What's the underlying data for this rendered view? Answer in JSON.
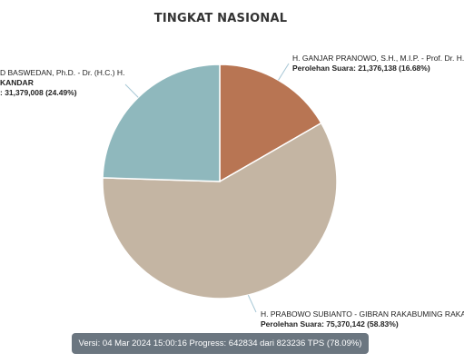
{
  "title": "TINGKAT NASIONAL",
  "colors": {
    "anies": "#8fb8bd",
    "ganjar": "#b87553",
    "prabowo": "#c4b5a3",
    "status_bg": "#6b7680"
  },
  "chart_data": {
    "type": "pie",
    "title": "TINGKAT NASIONAL",
    "slices": [
      {
        "name_line1": "H. GANJAR PRANOWO, S.H., M.I.P. - Prof. Dr. H. M",
        "name_line2": "",
        "vote_text": "Perolehan Suara: 21,376,138 (16.68%)",
        "value": 21376138,
        "percent": 16.68,
        "color": "#b87553"
      },
      {
        "name_line1": "H. PRABOWO SUBIANTO - GIBRAN RAKABUMING RAKA",
        "name_line2": "",
        "vote_text": "Perolehan Suara: 75,370,142 (58.83%)",
        "value": 75370142,
        "percent": 58.83,
        "color": "#c4b5a3"
      },
      {
        "name_line1": "D BASWEDAN, Ph.D. - Dr. (H.C.) H.",
        "name_line2": "KANDAR",
        "vote_text": ": 31,379,008 (24.49%)",
        "value": 31379008,
        "percent": 24.49,
        "color": "#8fb8bd"
      }
    ]
  },
  "status": {
    "text": "Versi: 04 Mar 2024 15:00:16 Progress: 642834 dari 823236 TPS (78.09%)"
  }
}
